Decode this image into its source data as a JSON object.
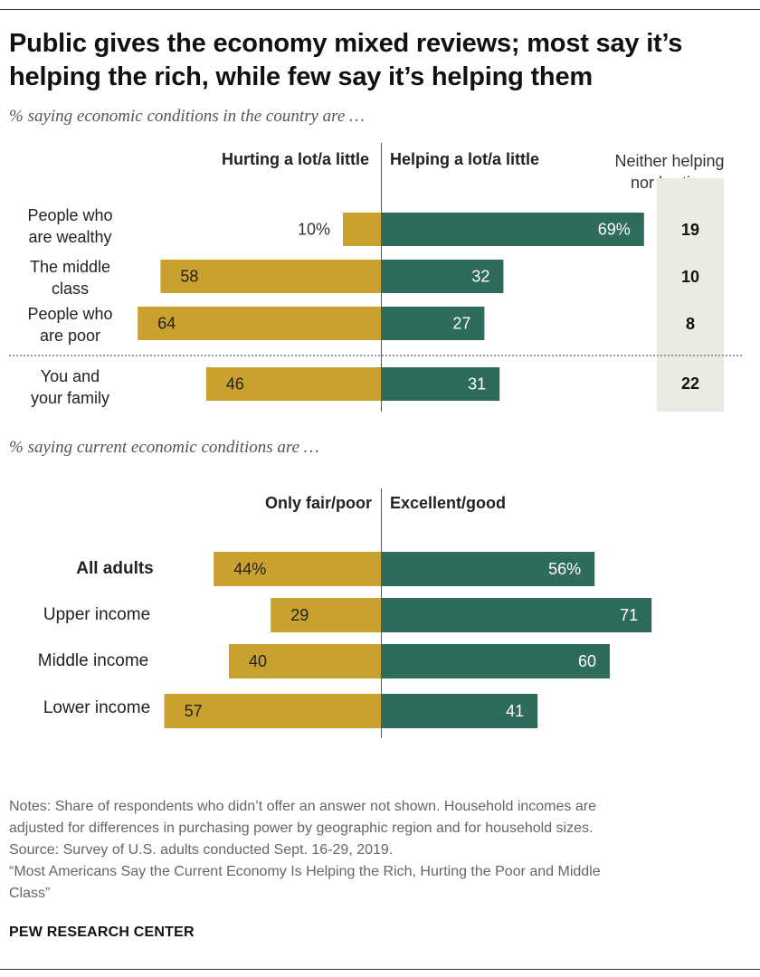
{
  "title_lines": [
    "Public gives the economy mixed reviews; most say it’s",
    "helping the rich, while few say it’s helping them"
  ],
  "colors": {
    "hurting": "#c9a12f",
    "helping": "#2e6b5c",
    "neither_bg": "#ebebe2"
  },
  "notes": [
    "Notes: Share of respondents who didn’t offer an answer not shown. Household incomes are",
    "adjusted for differences in purchasing power by geographic region and for household sizes.",
    "Source: Survey of U.S. adults conducted Sept. 16-29, 2019.",
    "“Most Americans Say the Current Economy Is Helping the Rich, Hurting the Poor and Middle",
    "Class”"
  ],
  "brand": "PEW RESEARCH CENTER",
  "chart_data": [
    {
      "type": "bar",
      "subtitle": "% saying economic conditions in the country are …",
      "neg_header": "Hurting a lot/a little",
      "pos_header": "Helping a lot/a little",
      "neither_header": [
        "Neither helping",
        "nor hurting"
      ],
      "categories": [
        {
          "label": [
            "People who",
            "are wealthy"
          ],
          "neg": 10,
          "pos": 69,
          "neither": 19,
          "neg_text": "10%",
          "pos_text": "69%"
        },
        {
          "label": [
            "The middle",
            "class"
          ],
          "neg": 58,
          "pos": 32,
          "neither": 10,
          "neg_text": "58",
          "pos_text": "32"
        },
        {
          "label": [
            "People who",
            "are poor"
          ],
          "neg": 64,
          "pos": 27,
          "neither": 8,
          "neg_text": "64",
          "pos_text": "27"
        },
        {
          "label": [
            "You and",
            "your family"
          ],
          "neg": 46,
          "pos": 31,
          "neither": 22,
          "neg_text": "46",
          "pos_text": "31"
        }
      ]
    },
    {
      "type": "bar",
      "subtitle": "% saying current economic conditions are …",
      "neg_header": "Only fair/poor",
      "pos_header": "Excellent/good",
      "categories": [
        {
          "label": "All adults",
          "bold": true,
          "neg": 44,
          "pos": 56,
          "neg_text": "44%",
          "pos_text": "56%"
        },
        {
          "label": "Upper income",
          "neg": 29,
          "pos": 71,
          "neg_text": "29",
          "pos_text": "71"
        },
        {
          "label": "Middle income",
          "neg": 40,
          "pos": 60,
          "neg_text": "40",
          "pos_text": "60"
        },
        {
          "label": "Lower income",
          "neg": 57,
          "pos": 41,
          "neg_text": "57",
          "pos_text": "41"
        }
      ]
    }
  ]
}
